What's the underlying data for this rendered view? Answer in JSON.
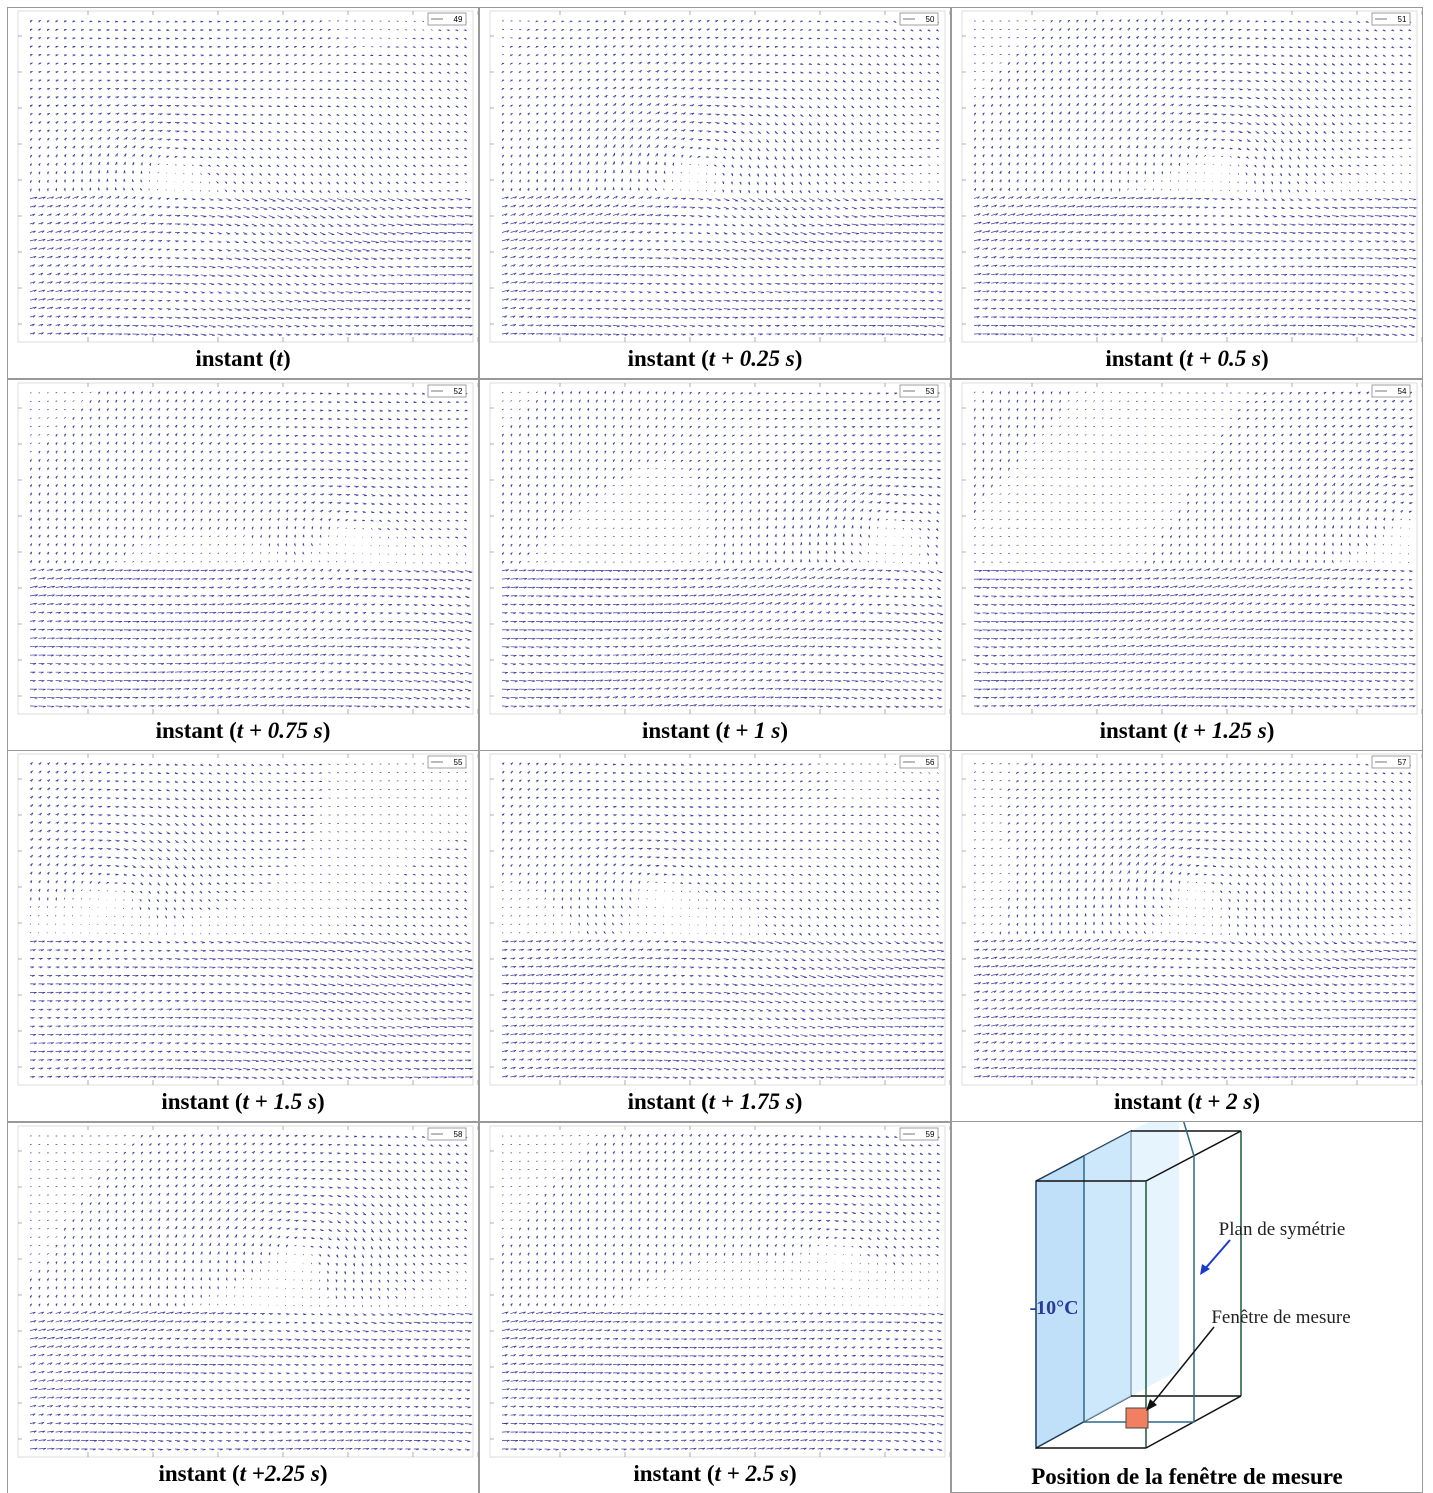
{
  "panels": [
    {
      "frame": "49",
      "caption": {
        "prefix": "instant (",
        "expr": "t",
        "suffix": ")"
      }
    },
    {
      "frame": "50",
      "caption": {
        "prefix": "instant (",
        "expr": "t + 0.25 s",
        "suffix": ")"
      }
    },
    {
      "frame": "51",
      "caption": {
        "prefix": "instant (",
        "expr": "t + 0.5 s",
        "suffix": ")"
      }
    },
    {
      "frame": "52",
      "caption": {
        "prefix": "instant (",
        "expr": "t + 0.75 s",
        "suffix": ")"
      }
    },
    {
      "frame": "53",
      "caption": {
        "prefix": "instant (",
        "expr": "t + 1 s",
        "suffix": ")"
      }
    },
    {
      "frame": "54",
      "caption": {
        "prefix": "instant (",
        "expr": "t + 1.25 s",
        "suffix": ")"
      }
    },
    {
      "frame": "55",
      "caption": {
        "prefix": "instant (",
        "expr": "t + 1.5 s",
        "suffix": ")"
      }
    },
    {
      "frame": "56",
      "caption": {
        "prefix": "instant (",
        "expr": "t + 1.75 s",
        "suffix": ")"
      }
    },
    {
      "frame": "57",
      "caption": {
        "prefix": "instant (",
        "expr": "t + 2 s",
        "suffix": ")"
      }
    },
    {
      "frame": "58",
      "caption": {
        "prefix": "instant (",
        "expr": "t +2.25 s",
        "suffix": ")"
      }
    },
    {
      "frame": "59",
      "caption": {
        "prefix": "instant (",
        "expr": "t + 2.5 s",
        "suffix": ")"
      }
    }
  ],
  "diagram": {
    "temperature": "-10°C",
    "plane_label": "Plan de symétrie",
    "window_label": "Fenêtre de mesure",
    "caption": "Position de la fenêtre de mesure"
  }
}
